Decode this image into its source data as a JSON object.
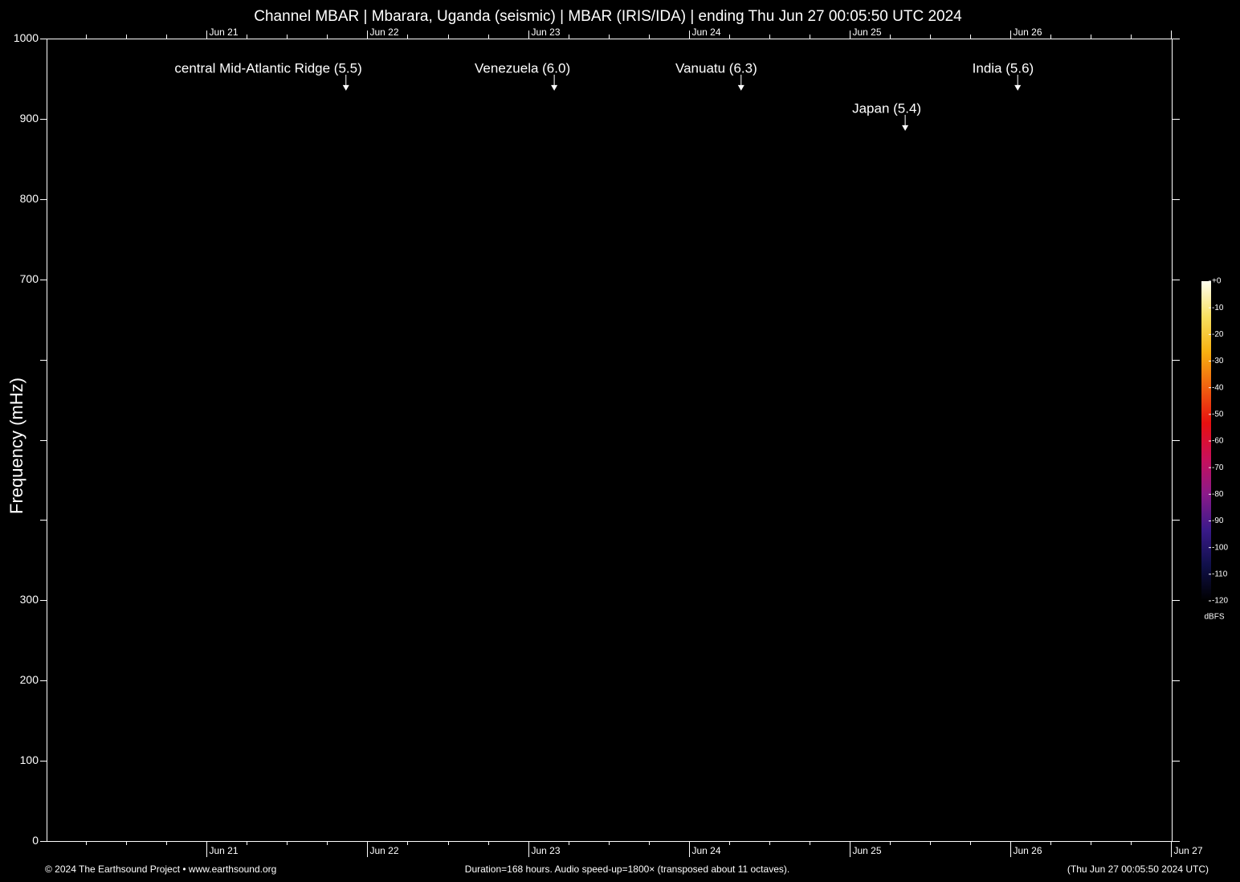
{
  "chart_data": {
    "type": "spectrogram",
    "title": "Channel MBAR | Mbarara, Uganda (seismic) | MBAR (IRIS/IDA) | ending Thu Jun 27 00:05:50 UTC 2024",
    "y_label": "Frequency (mHz)",
    "ylim": [
      0,
      1000
    ],
    "yticks": [
      0,
      100,
      200,
      300,
      {
        "value": 400,
        "label": null
      },
      {
        "value": 500,
        "label": null
      },
      {
        "value": 600,
        "label": null
      },
      700,
      800,
      900,
      1000
    ],
    "xlim": [
      0,
      168
    ],
    "xticks": [
      {
        "value": 23.9,
        "label": "Jun 21"
      },
      {
        "value": 47.9,
        "label": "Jun 22"
      },
      {
        "value": 71.9,
        "label": "Jun 23"
      },
      {
        "value": 95.9,
        "label": "Jun 24"
      },
      {
        "value": 119.9,
        "label": "Jun 25"
      },
      {
        "value": 143.9,
        "label": "Jun 26"
      },
      {
        "value": 167.9,
        "label": "Jun 27"
      }
    ],
    "minor_xticks": [
      5.9,
      11.9,
      17.9,
      29.9,
      35.9,
      41.9,
      53.9,
      59.9,
      65.9,
      77.9,
      83.9,
      89.9,
      101.9,
      107.9,
      113.9,
      125.9,
      131.9,
      137.9,
      149.9,
      155.9,
      161.9
    ],
    "annotations": [
      {
        "label": "central Mid-Atlantic Ridge (5.5)",
        "x": 44.7,
        "y": 935
      },
      {
        "label": "Venezuela (6.0)",
        "x": 75.8,
        "y": 935
      },
      {
        "label": "Vanuatu (6.3)",
        "x": 103.7,
        "y": 935
      },
      {
        "label": "Japan (5.4)",
        "x": 128.2,
        "y": 885
      },
      {
        "label": "India (5.6)",
        "x": 145.0,
        "y": 935
      }
    ],
    "colorbar": {
      "label": "dBFS",
      "lim": [
        -120,
        0
      ],
      "ticks": [
        {
          "value": 0,
          "label": "+0"
        },
        -10,
        -20,
        -30,
        -40,
        -50,
        -60,
        -70,
        -80,
        -90,
        -100,
        -110,
        -120
      ],
      "colors": [
        "#000000",
        "#10104a",
        "#3a1a8a",
        "#8a1a8a",
        "#c8105a",
        "#e81010",
        "#f06010",
        "#f8b010",
        "#f8e060",
        "#fffff0"
      ]
    },
    "footer": {
      "left": "© 2024 The Earthsound Project • www.earthsound.org",
      "center": "Duration=168 hours. Audio speed-up=1800× (transposed about 11 octaves).",
      "right": "(Thu Jun 27 00:05:50 2024 UTC)"
    }
  }
}
